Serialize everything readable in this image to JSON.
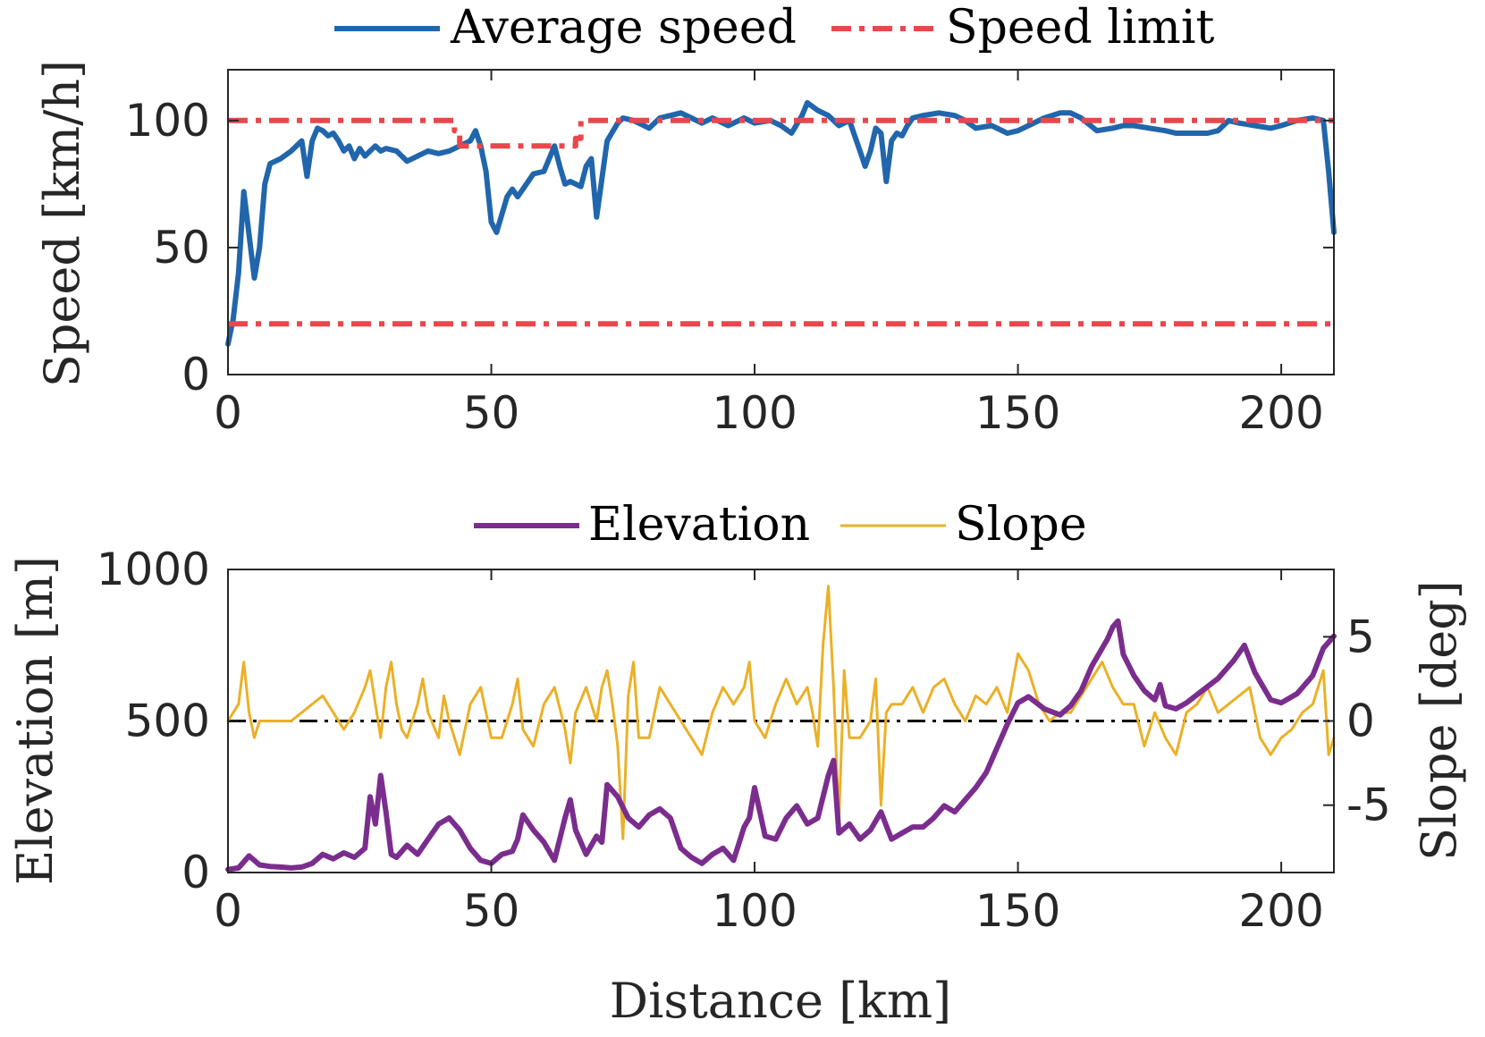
{
  "chart_data": [
    {
      "type": "line",
      "ylabel": "Speed [km/h]",
      "xlim": [
        0,
        210
      ],
      "ylim": [
        0,
        120
      ],
      "xticks": [
        "0",
        "50",
        "100",
        "150",
        "200"
      ],
      "xtick_values": [
        0,
        50,
        100,
        150,
        200
      ],
      "yticks": [
        "0",
        "50",
        "100"
      ],
      "ytick_values": [
        0,
        50,
        100
      ],
      "legend_position": "top-outside",
      "legend": [
        {
          "name": "Average speed",
          "color": "#2166ac",
          "style": "solid"
        },
        {
          "name": "Speed limit",
          "color": "#e8474c",
          "style": "dashdot"
        }
      ],
      "series": [
        {
          "name": "Average speed",
          "color": "#2166ac",
          "x": [
            0,
            1,
            2,
            3,
            4,
            5,
            6,
            7,
            8,
            9,
            10,
            12,
            14,
            15,
            16,
            17,
            18,
            19,
            20,
            21,
            22,
            23,
            24,
            25,
            26,
            27,
            28,
            29,
            30,
            32,
            34,
            36,
            38,
            40,
            42,
            44,
            46,
            47,
            48,
            49,
            50,
            51,
            52,
            53,
            54,
            55,
            56,
            58,
            60,
            62,
            63,
            64,
            65,
            67,
            68,
            69,
            70,
            72,
            74,
            75,
            77,
            80,
            82,
            84,
            86,
            88,
            90,
            92,
            95,
            98,
            100,
            103,
            105,
            107,
            109,
            110,
            112,
            114,
            116,
            118,
            119,
            120,
            121,
            122,
            123,
            124,
            125,
            126,
            127,
            128,
            129,
            130,
            132,
            135,
            138,
            140,
            142,
            145,
            148,
            150,
            152,
            155,
            158,
            160,
            162,
            165,
            168,
            170,
            172,
            175,
            178,
            180,
            183,
            186,
            188,
            190,
            192,
            195,
            198,
            200,
            203,
            206,
            208,
            209,
            210
          ],
          "y": [
            12,
            22,
            40,
            72,
            55,
            38,
            50,
            75,
            83,
            84,
            85,
            88,
            92,
            78,
            92,
            97,
            96,
            94,
            95,
            92,
            88,
            90,
            85,
            89,
            86,
            88,
            90,
            88,
            89,
            88,
            84,
            86,
            88,
            87,
            88,
            90,
            92,
            96,
            90,
            80,
            60,
            56,
            63,
            70,
            73,
            70,
            73,
            79,
            80,
            90,
            82,
            75,
            76,
            74,
            82,
            85,
            62,
            92,
            99,
            101,
            100,
            97,
            101,
            102,
            103,
            101,
            99,
            101,
            98,
            101,
            99,
            100,
            98,
            95,
            102,
            107,
            104,
            102,
            98,
            100,
            94,
            88,
            82,
            88,
            97,
            95,
            76,
            92,
            95,
            94,
            98,
            101,
            102,
            103,
            102,
            100,
            97,
            98,
            95,
            96,
            98,
            101,
            103,
            103,
            101,
            96,
            97,
            98,
            98,
            97,
            96,
            95,
            95,
            95,
            96,
            100,
            99,
            98,
            97,
            98,
            100,
            101,
            100,
            80,
            56
          ]
        },
        {
          "name": "Speed limit",
          "color": "#e8474c",
          "x": [
            0,
            43,
            43,
            44,
            44,
            66,
            66,
            67,
            67,
            210
          ],
          "y": [
            100,
            100,
            96,
            96,
            90,
            90,
            93,
            93,
            100,
            100
          ]
        },
        {
          "name": "Speed limit (lower)",
          "color": "#e8474c",
          "x": [
            0,
            210
          ],
          "y": [
            20,
            20
          ]
        }
      ]
    },
    {
      "type": "line",
      "xlabel": "Distance [km]",
      "ylabel": "Elevation [m]",
      "ylabel_right": "Slope [deg]",
      "xlim": [
        0,
        210
      ],
      "ylim": [
        0,
        1000
      ],
      "ylim_right": [
        -9,
        9
      ],
      "xticks": [
        "0",
        "50",
        "100",
        "150",
        "200"
      ],
      "xtick_values": [
        0,
        50,
        100,
        150,
        200
      ],
      "yticks": [
        "0",
        "500",
        "1000"
      ],
      "ytick_values": [
        0,
        500,
        1000
      ],
      "yticks_right": [
        "-5",
        "0",
        "5"
      ],
      "ytick_values_right": [
        -5,
        0,
        5
      ],
      "legend_position": "top-outside",
      "legend": [
        {
          "name": "Elevation",
          "color": "#7b2d8e",
          "style": "solid"
        },
        {
          "name": "Slope",
          "color": "#ebb027",
          "style": "solid"
        }
      ],
      "series": [
        {
          "name": "Elevation",
          "color": "#7b2d8e",
          "axis": "left",
          "x": [
            0,
            2,
            4,
            6,
            8,
            10,
            12,
            14,
            16,
            18,
            20,
            22,
            24,
            26,
            27,
            28,
            29,
            30,
            31,
            32,
            34,
            36,
            38,
            40,
            42,
            44,
            46,
            48,
            50,
            52,
            54,
            55,
            56,
            58,
            60,
            62,
            64,
            65,
            66,
            68,
            70,
            71,
            72,
            73,
            74,
            76,
            78,
            80,
            82,
            84,
            86,
            88,
            90,
            92,
            94,
            96,
            98,
            99,
            100,
            102,
            104,
            106,
            108,
            110,
            112,
            114,
            115,
            116,
            118,
            120,
            122,
            124,
            126,
            128,
            130,
            132,
            134,
            136,
            138,
            140,
            142,
            144,
            146,
            148,
            150,
            152,
            155,
            158,
            160,
            162,
            164,
            166,
            167,
            168,
            169,
            170,
            172,
            174,
            176,
            177,
            178,
            180,
            182,
            185,
            188,
            191,
            193,
            195,
            198,
            200,
            203,
            206,
            208,
            210
          ],
          "y": [
            10,
            15,
            55,
            25,
            20,
            18,
            15,
            18,
            30,
            60,
            45,
            65,
            50,
            80,
            250,
            160,
            320,
            200,
            60,
            50,
            90,
            60,
            110,
            160,
            180,
            140,
            80,
            40,
            30,
            60,
            70,
            110,
            190,
            140,
            100,
            40,
            180,
            240,
            140,
            60,
            120,
            100,
            290,
            270,
            250,
            180,
            150,
            190,
            210,
            180,
            80,
            50,
            30,
            60,
            80,
            40,
            150,
            180,
            280,
            120,
            110,
            180,
            220,
            160,
            180,
            320,
            370,
            130,
            160,
            110,
            140,
            200,
            110,
            130,
            150,
            150,
            180,
            220,
            200,
            240,
            280,
            330,
            410,
            490,
            560,
            580,
            540,
            520,
            550,
            600,
            680,
            740,
            770,
            810,
            830,
            720,
            650,
            600,
            570,
            620,
            550,
            540,
            560,
            600,
            640,
            700,
            750,
            660,
            570,
            560,
            590,
            650,
            740,
            780
          ]
        },
        {
          "name": "Slope",
          "color": "#ebb027",
          "axis": "right",
          "x": [
            0,
            2,
            3,
            4,
            5,
            6,
            8,
            10,
            12,
            14,
            16,
            18,
            20,
            22,
            24,
            26,
            27,
            28,
            29,
            30,
            31,
            32,
            33,
            34,
            36,
            37,
            38,
            40,
            41,
            42,
            44,
            46,
            48,
            50,
            52,
            54,
            55,
            56,
            58,
            60,
            62,
            64,
            65,
            66,
            68,
            70,
            71,
            72,
            73,
            74,
            75,
            76,
            77,
            78,
            80,
            82,
            84,
            86,
            88,
            90,
            92,
            94,
            96,
            98,
            99,
            100,
            102,
            104,
            106,
            108,
            110,
            111,
            112,
            113,
            114,
            115,
            116,
            117,
            118,
            120,
            122,
            123,
            124,
            125,
            126,
            128,
            130,
            132,
            134,
            136,
            138,
            140,
            142,
            144,
            146,
            148,
            150,
            152,
            154,
            156,
            158,
            160,
            162,
            164,
            166,
            168,
            170,
            172,
            174,
            176,
            178,
            180,
            182,
            184,
            186,
            188,
            190,
            192,
            194,
            196,
            198,
            200,
            202,
            204,
            206,
            208,
            209,
            210
          ],
          "y": [
            0,
            1,
            3.5,
            0.5,
            -1,
            0,
            0,
            0,
            0,
            0.5,
            1,
            1.5,
            0.5,
            -0.5,
            0.5,
            2,
            3,
            1,
            -1,
            2,
            3.5,
            1,
            -0.5,
            -1,
            1,
            2.5,
            0.5,
            -1,
            1.5,
            0,
            -2,
            1,
            2,
            -1,
            -1,
            1,
            2.5,
            -0.5,
            -1.5,
            1,
            2,
            -0.5,
            -2.5,
            0.5,
            2,
            0,
            2,
            3,
            1,
            -1.5,
            -7,
            1.5,
            3.5,
            -1,
            -1,
            2,
            1,
            0,
            -1,
            -2,
            0.5,
            2,
            1,
            2,
            3.5,
            0,
            -1,
            1,
            2.5,
            1,
            2,
            0.5,
            -1.5,
            4.5,
            8,
            2,
            -6,
            3,
            -1,
            -1,
            0,
            2.5,
            -5,
            0.5,
            1,
            1,
            2,
            0.5,
            2,
            2.5,
            1,
            0,
            1.5,
            1,
            2,
            0.5,
            4,
            3,
            1,
            0,
            0.5,
            0.5,
            1.5,
            2.5,
            3.5,
            2,
            1,
            1,
            -1.5,
            0.5,
            -1,
            -2,
            0.5,
            1,
            2,
            0.5,
            1,
            1.5,
            2,
            -1,
            -2,
            -1,
            -0.5,
            0.5,
            1,
            3,
            -2,
            -1
          ]
        },
        {
          "name": "Zero slope",
          "color": "#000000",
          "axis": "right",
          "x": [
            0,
            210
          ],
          "y": [
            0,
            0
          ]
        }
      ]
    }
  ]
}
